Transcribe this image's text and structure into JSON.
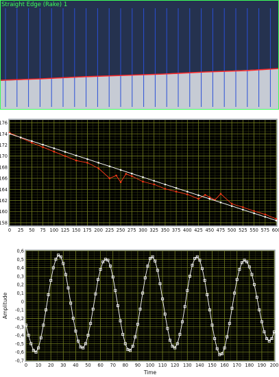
{
  "camera_view": {
    "title": "Straight Edge (Rake) 1",
    "colors": {
      "sky": "#25324f",
      "surface": "#c6cbd4",
      "rake": "#2a4fd6",
      "edge": "#ff2a2a",
      "label": "#3dff5a"
    }
  },
  "colors": {
    "plot_bg": "#000000",
    "grid_major": "#6f7a1e",
    "grid_minor": "#3a4012",
    "frame": "#9aa0a8",
    "tick_text": "#111111",
    "edge_trace": "#ff3a1a",
    "fit_line": "#ffffff",
    "sine": "#ffffff"
  },
  "chart_data": [
    {
      "type": "line",
      "title": "",
      "xlabel": "",
      "ylabel": "",
      "xlim": [
        0,
        600
      ],
      "ylim": [
        157.5,
        176.5
      ],
      "xticks": [
        0,
        25,
        50,
        75,
        100,
        125,
        150,
        175,
        200,
        225,
        250,
        275,
        300,
        325,
        350,
        375,
        400,
        425,
        450,
        475,
        500,
        525,
        550,
        575,
        600
      ],
      "yticks": [
        158,
        160,
        162,
        164,
        166,
        168,
        170,
        172,
        174,
        176
      ],
      "x_tick_labels": [
        "0",
        "25",
        "50",
        "75",
        "100",
        "125",
        "150",
        "175",
        "200",
        "225",
        "250",
        "275",
        "300",
        "325",
        "350",
        "375",
        "400",
        "425",
        "450",
        "475",
        "500",
        "525",
        "550",
        "575",
        "600"
      ],
      "y_tick_labels": [
        "158",
        "160",
        "162",
        "164",
        "166",
        "168",
        "170",
        "172",
        "174",
        "176"
      ],
      "grid": true,
      "series": [
        {
          "role": "measured edge",
          "color": "#ff3a1a",
          "x": [
            0,
            25,
            50,
            75,
            100,
            125,
            150,
            175,
            200,
            225,
            240,
            250,
            262,
            275,
            300,
            325,
            350,
            375,
            400,
            425,
            440,
            450,
            462,
            475,
            500,
            525,
            550,
            575,
            600
          ],
          "y": [
            174.2,
            173.3,
            172.4,
            171.6,
            170.8,
            170.0,
            169.2,
            168.8,
            167.8,
            166.0,
            166.5,
            165.3,
            166.8,
            166.4,
            165.4,
            164.9,
            164.1,
            163.6,
            163.1,
            162.3,
            163.0,
            162.6,
            162.1,
            163.2,
            161.4,
            160.8,
            160.1,
            159.5,
            158.7
          ]
        },
        {
          "role": "fitted line",
          "color": "#ffffff",
          "x": [
            0,
            25,
            50,
            75,
            100,
            125,
            150,
            175,
            200,
            225,
            250,
            275,
            300,
            325,
            350,
            375,
            400,
            425,
            450,
            475,
            500,
            525,
            550,
            575,
            600
          ],
          "y": [
            174.0,
            173.35,
            172.7,
            172.05,
            171.4,
            170.75,
            170.1,
            169.45,
            168.8,
            168.15,
            167.5,
            166.85,
            166.2,
            165.55,
            164.9,
            164.25,
            163.6,
            162.95,
            162.3,
            161.65,
            161.0,
            160.35,
            159.7,
            159.05,
            158.4
          ]
        }
      ]
    },
    {
      "type": "line",
      "title": "",
      "xlabel": "Time",
      "ylabel": "Amplitude",
      "xlim": [
        0,
        200
      ],
      "ylim": [
        -0.7,
        0.6
      ],
      "xticks": [
        0,
        10,
        20,
        30,
        40,
        50,
        60,
        70,
        80,
        90,
        100,
        110,
        120,
        130,
        140,
        150,
        160,
        170,
        180,
        190,
        200
      ],
      "yticks": [
        -0.7,
        -0.6,
        -0.5,
        -0.4,
        -0.3,
        -0.2,
        -0.1,
        0,
        0.1,
        0.2,
        0.3,
        0.4,
        0.5,
        0.6
      ],
      "x_tick_labels": [
        "0",
        "10",
        "20",
        "30",
        "40",
        "50",
        "60",
        "70",
        "80",
        "90",
        "100",
        "110",
        "120",
        "130",
        "140",
        "150",
        "160",
        "170",
        "180",
        "190",
        "200"
      ],
      "y_tick_labels": [
        "-0,7",
        "-0,6",
        "-0,5",
        "-0,4",
        "-0,3",
        "-0,2",
        "-0,1",
        "0",
        "0,1",
        "0,2",
        "0,3",
        "0,4",
        "0,5",
        "0,6"
      ],
      "grid": true,
      "series": [
        {
          "role": "amplitude",
          "color": "#ffffff",
          "x": [
            0,
            2,
            4,
            6,
            8,
            10,
            12,
            14,
            16,
            18,
            20,
            22,
            24,
            26,
            28,
            30,
            32,
            34,
            36,
            38,
            40,
            42,
            44,
            46,
            48,
            50,
            52,
            54,
            56,
            58,
            60,
            62,
            64,
            66,
            68,
            70,
            72,
            74,
            76,
            78,
            80,
            82,
            84,
            86,
            88,
            90,
            92,
            94,
            96,
            98,
            100,
            102,
            104,
            106,
            108,
            110,
            112,
            114,
            116,
            118,
            120,
            122,
            124,
            126,
            128,
            130,
            132,
            134,
            136,
            138,
            140,
            142,
            144,
            146,
            148,
            150,
            152,
            154,
            156,
            158,
            160,
            162,
            164,
            166,
            168,
            170,
            172,
            174,
            176,
            178,
            180,
            182,
            184,
            186,
            188,
            190,
            192,
            194,
            196,
            198,
            200
          ],
          "y": [
            -0.28,
            -0.4,
            -0.5,
            -0.58,
            -0.6,
            -0.55,
            -0.43,
            -0.28,
            -0.1,
            0.08,
            0.25,
            0.4,
            0.5,
            0.55,
            0.53,
            0.45,
            0.32,
            0.16,
            -0.02,
            -0.2,
            -0.35,
            -0.47,
            -0.54,
            -0.55,
            -0.5,
            -0.4,
            -0.26,
            -0.09,
            0.09,
            0.26,
            0.38,
            0.47,
            0.5,
            0.49,
            0.42,
            0.29,
            0.13,
            -0.05,
            -0.23,
            -0.39,
            -0.5,
            -0.57,
            -0.58,
            -0.53,
            -0.42,
            -0.27,
            -0.09,
            0.1,
            0.28,
            0.42,
            0.51,
            0.53,
            0.48,
            0.37,
            0.21,
            0.03,
            -0.15,
            -0.32,
            -0.46,
            -0.53,
            -0.55,
            -0.5,
            -0.39,
            -0.24,
            -0.06,
            0.13,
            0.3,
            0.43,
            0.51,
            0.53,
            0.49,
            0.39,
            0.25,
            0.08,
            -0.1,
            -0.28,
            -0.44,
            -0.56,
            -0.63,
            -0.62,
            -0.55,
            -0.42,
            -0.26,
            -0.08,
            0.1,
            0.26,
            0.38,
            0.46,
            0.49,
            0.47,
            0.41,
            0.32,
            0.2,
            0.05,
            -0.1,
            -0.24,
            -0.36,
            -0.44,
            -0.47,
            -0.44,
            -0.36
          ]
        }
      ]
    }
  ]
}
